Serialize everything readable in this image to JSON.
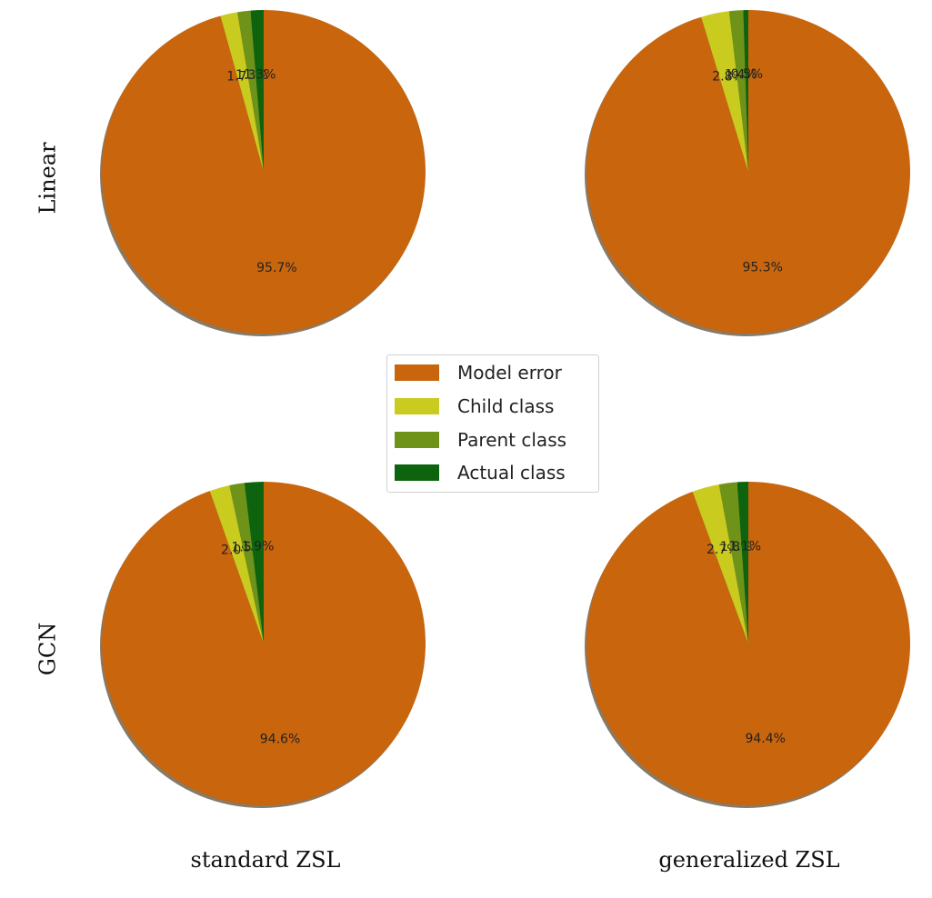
{
  "chart_data": {
    "type": "pie",
    "row_labels": [
      "Linear",
      "GCN"
    ],
    "column_labels": [
      "standard ZSL",
      "generalized ZSL"
    ],
    "categories": [
      "Model error",
      "Child class",
      "Parent class",
      "Actual class"
    ],
    "colors": [
      "#c8650d",
      "#c9cb1f",
      "#6e9318",
      "#0e640e"
    ],
    "legend_placement": "center",
    "shadow": true,
    "start_angle_deg": 90,
    "direction": "clockwise",
    "pies": [
      {
        "row": "Linear",
        "column": "standard ZSL",
        "values": [
          95.7,
          1.7,
          1.3,
          1.3
        ],
        "labels": [
          "95.7%",
          "1.7%",
          "1.3%",
          "1.3%"
        ]
      },
      {
        "row": "Linear",
        "column": "generalized ZSL",
        "values": [
          95.3,
          2.8,
          1.4,
          0.5
        ],
        "labels": [
          "95.3%",
          "2.8%",
          "1.4%",
          "0.5%"
        ]
      },
      {
        "row": "GCN",
        "column": "standard ZSL",
        "values": [
          94.6,
          2.0,
          1.5,
          1.9
        ],
        "labels": [
          "94.6%",
          "2.0%",
          "1.5%",
          "1.9%"
        ]
      },
      {
        "row": "GCN",
        "column": "generalized ZSL",
        "values": [
          94.4,
          2.7,
          1.8,
          1.1
        ],
        "labels": [
          "94.4%",
          "2.7%",
          "1.8%",
          "1.1%"
        ]
      }
    ]
  }
}
